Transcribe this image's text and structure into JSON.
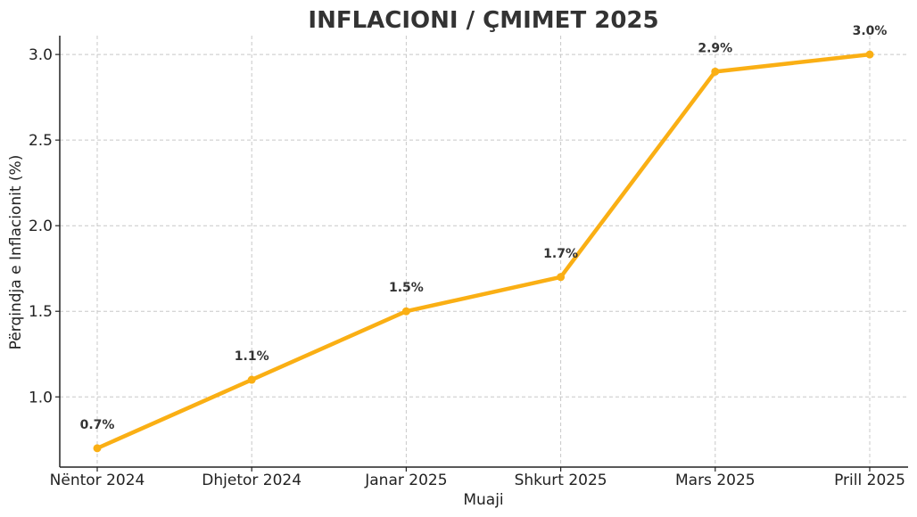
{
  "chart_data": {
    "type": "line",
    "title": "INFLACIONI / ÇMIMET 2025",
    "xlabel": "Muaji",
    "ylabel": "Përqindja e Inflacionit (%)",
    "categories": [
      "Nëntor 2024",
      "Dhjetor 2024",
      "Janar 2025",
      "Shkurt 2025",
      "Mars 2025",
      "Prill 2025"
    ],
    "series": [
      {
        "values": [
          0.7,
          1.1,
          1.5,
          1.7,
          2.9,
          3.0
        ],
        "data_labels": [
          "0.7%",
          "1.1%",
          "1.5%",
          "1.7%",
          "2.9%",
          "3.0%"
        ],
        "color": "#FAAF14"
      }
    ],
    "yticks": [
      1.0,
      1.5,
      2.0,
      2.5,
      3.0
    ],
    "ytick_labels": [
      "1.0",
      "1.5",
      "2.0",
      "2.5",
      "3.0"
    ],
    "ylim": [
      0.59,
      3.11
    ],
    "grid": true,
    "grid_style": "dashed",
    "text_color": "#333333"
  }
}
